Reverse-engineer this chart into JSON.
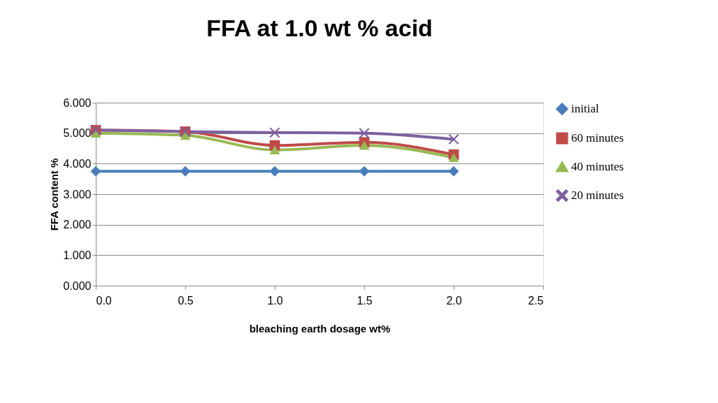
{
  "chart_data": {
    "type": "line",
    "title": "FFA at 1.0 wt % acid",
    "xlabel": "bleaching earth dosage wt%",
    "ylabel": "FFA content %",
    "x": [
      0.0,
      0.5,
      1.0,
      1.5,
      2.0
    ],
    "series": [
      {
        "name": "initial",
        "color": "#4a7ebb",
        "marker": "diamond",
        "values": [
          3.75,
          3.75,
          3.75,
          3.75,
          3.75
        ]
      },
      {
        "name": "60 minutes",
        "color": "#be4b48",
        "marker": "square",
        "values": [
          5.1,
          5.05,
          4.6,
          4.7,
          4.3
        ]
      },
      {
        "name": "40 minutes",
        "color": "#98b954",
        "marker": "triangle",
        "values": [
          5.0,
          4.93,
          4.45,
          4.6,
          4.2
        ]
      },
      {
        "name": "20 minutes",
        "color": "#7d60a0",
        "marker": "cross",
        "values": [
          5.1,
          5.05,
          5.02,
          5.0,
          4.8
        ]
      }
    ],
    "xlim": [
      0,
      2.5
    ],
    "xticks": [
      {
        "value": 0,
        "label": "0.0"
      },
      {
        "value": 0.5,
        "label": "0.5"
      },
      {
        "value": 1,
        "label": "1.0"
      },
      {
        "value": 1.5,
        "label": "1.5"
      },
      {
        "value": 2,
        "label": "2.0"
      },
      {
        "value": 2.5,
        "label": "2.5"
      }
    ],
    "ylim": [
      0,
      6
    ],
    "yticks": [
      {
        "value": 0,
        "label": "0.000"
      },
      {
        "value": 1,
        "label": "1.000"
      },
      {
        "value": 2,
        "label": "2.000"
      },
      {
        "value": 3,
        "label": "3.000"
      },
      {
        "value": 4,
        "label": "4.000"
      },
      {
        "value": 5,
        "label": "5.000"
      },
      {
        "value": 6,
        "label": "6.000"
      }
    ],
    "grid": "y",
    "legend": "right"
  }
}
